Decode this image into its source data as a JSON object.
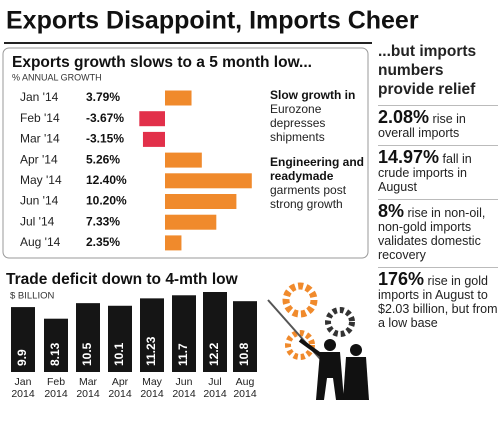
{
  "title": "Exports Disappoint, Imports Cheer",
  "chart_data": [
    {
      "type": "hbar",
      "title": "Exports growth slows to a 5 month low...",
      "subtitle": "% ANNUAL GROWTH",
      "categories": [
        "Jan '14",
        "Feb '14",
        "Mar '14",
        "Apr '14",
        "May '14",
        "Jun '14",
        "Jul '14",
        "Aug '14"
      ],
      "values": [
        3.79,
        -3.67,
        -3.15,
        5.26,
        12.4,
        10.2,
        7.33,
        2.35
      ],
      "value_labels": [
        "3.79%",
        "-3.67%",
        "-3.15%",
        "5.26%",
        "12.40%",
        "10.20%",
        "7.33%",
        "2.35%"
      ],
      "color": "#f08a2c",
      "negative_color": "#e2304a",
      "annotations": [
        {
          "bold": "Slow growth in",
          "text": "Eurozone depresses shipments"
        },
        {
          "bold": "Engineering and readymade",
          "text": "garments post strong growth"
        }
      ]
    },
    {
      "type": "bar",
      "title": "Trade deficit down to 4-mth low",
      "subtitle": "$ BILLION",
      "categories": [
        "Jan 2014",
        "Feb 2014",
        "Mar 2014",
        "Apr 2014",
        "May 2014",
        "Jun 2014",
        "Jul 2014",
        "Aug 2014"
      ],
      "values": [
        9.9,
        8.13,
        10.5,
        10.1,
        11.23,
        11.7,
        12.2,
        10.8
      ],
      "color": "#151515"
    }
  ],
  "side_panel": {
    "title": "...but imports numbers provide relief",
    "items": [
      {
        "figure": "2.08%",
        "text": "rise in overall imports"
      },
      {
        "figure": "14.97%",
        "text": "fall in crude imports in August"
      },
      {
        "figure": "8%",
        "text": "rise in non-oil, non-gold imports validates domestic recovery"
      },
      {
        "figure": "176%",
        "text": "rise in gold imports in August to $2.03 billion, but from a low base"
      }
    ]
  }
}
